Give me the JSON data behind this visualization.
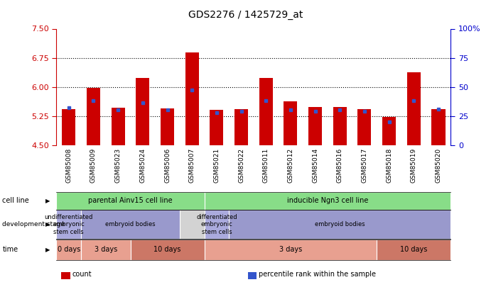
{
  "title": "GDS2276 / 1425729_at",
  "samples": [
    "GSM85008",
    "GSM85009",
    "GSM85023",
    "GSM85024",
    "GSM85006",
    "GSM85007",
    "GSM85021",
    "GSM85022",
    "GSM85011",
    "GSM85012",
    "GSM85014",
    "GSM85016",
    "GSM85017",
    "GSM85018",
    "GSM85019",
    "GSM85020"
  ],
  "counts": [
    5.42,
    5.98,
    5.46,
    6.22,
    5.45,
    6.88,
    5.4,
    5.42,
    6.22,
    5.62,
    5.48,
    5.48,
    5.42,
    5.22,
    6.38,
    5.42
  ],
  "percentile_ranks": [
    32,
    38,
    30,
    36,
    30,
    47,
    28,
    29,
    38,
    30,
    29,
    30,
    29,
    20,
    38,
    31
  ],
  "ylim_left": [
    4.5,
    7.5
  ],
  "ylim_right": [
    0,
    100
  ],
  "yticks_left": [
    4.5,
    5.25,
    6.0,
    6.75,
    7.5
  ],
  "yticks_right": [
    0,
    25,
    50,
    75,
    100
  ],
  "bar_color": "#cc0000",
  "dot_color": "#3355cc",
  "axis_left_color": "#cc0000",
  "axis_right_color": "#0000cc",
  "bg_color": "#d3d3d3",
  "cell_line_groups": [
    {
      "label": "parental Ainv15 cell line",
      "start": 0,
      "end": 5,
      "color": "#88dd88"
    },
    {
      "label": "inducible Ngn3 cell line",
      "start": 6,
      "end": 15,
      "color": "#88dd88"
    }
  ],
  "dev_stage_groups": [
    {
      "label": "undifferentiated\nembryonic\nstem cells",
      "start": 0,
      "end": 0,
      "color": "#aaaadd"
    },
    {
      "label": "embryoid bodies",
      "start": 1,
      "end": 4,
      "color": "#9999cc"
    },
    {
      "label": "differentiated\nembryonic\nstem cells",
      "start": 6,
      "end": 6,
      "color": "#aaaadd"
    },
    {
      "label": "embryoid bodies",
      "start": 7,
      "end": 15,
      "color": "#9999cc"
    }
  ],
  "time_groups": [
    {
      "label": "0 days",
      "start": 0,
      "end": 0,
      "color": "#e8a090"
    },
    {
      "label": "3 days",
      "start": 1,
      "end": 2,
      "color": "#e8a090"
    },
    {
      "label": "10 days",
      "start": 3,
      "end": 5,
      "color": "#cc7766"
    },
    {
      "label": "3 days",
      "start": 6,
      "end": 12,
      "color": "#e8a090"
    },
    {
      "label": "10 days",
      "start": 13,
      "end": 15,
      "color": "#cc7766"
    }
  ],
  "legend_items": [
    {
      "color": "#cc0000",
      "label": "count"
    },
    {
      "color": "#3355cc",
      "label": "percentile rank within the sample"
    }
  ]
}
